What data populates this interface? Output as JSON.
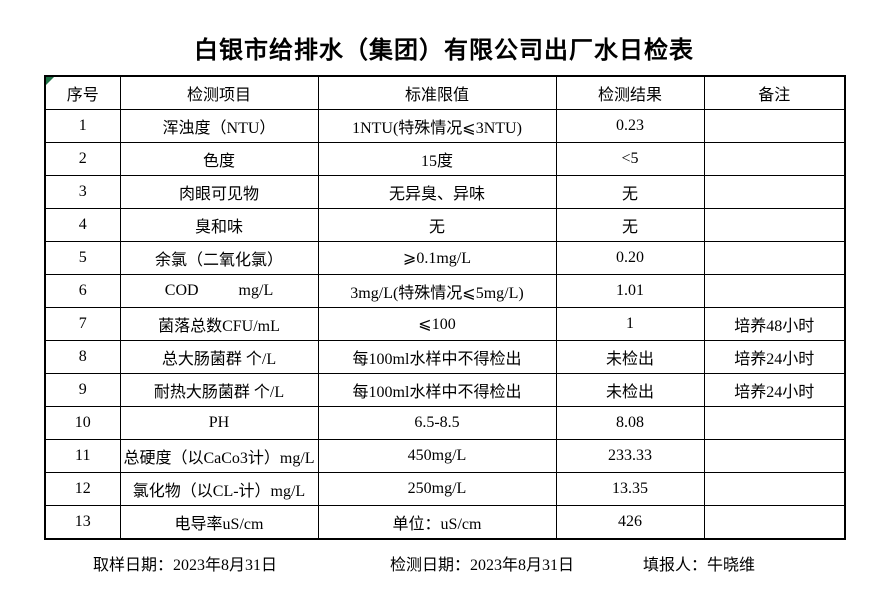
{
  "title": "白银市给排水（集团）有限公司出厂水日检表",
  "table": {
    "headers": [
      "序号",
      "检测项目",
      "标准限值",
      "检测结果",
      "备注"
    ],
    "rows": [
      [
        "1",
        "浑浊度（NTU）",
        "1NTU(特殊情况⩽3NTU)",
        "0.23",
        ""
      ],
      [
        "2",
        "色度",
        "15度",
        "<5",
        ""
      ],
      [
        "3",
        "肉眼可见物",
        "无异臭、异味",
        "无",
        ""
      ],
      [
        "4",
        "臭和味",
        "无",
        "无",
        ""
      ],
      [
        "5",
        "余氯（二氧化氯）",
        "⩾0.1mg/L",
        "0.20",
        ""
      ],
      [
        "6",
        "COD          mg/L",
        "3mg/L(特殊情况⩽5mg/L)",
        "1.01",
        ""
      ],
      [
        "7",
        "菌落总数CFU/mL",
        "⩽100",
        "1",
        "培养48小时"
      ],
      [
        "8",
        "总大肠菌群 个/L",
        "每100ml水样中不得检出",
        "未检出",
        "培养24小时"
      ],
      [
        "9",
        "耐热大肠菌群 个/L",
        "每100ml水样中不得检出",
        "未检出",
        "培养24小时"
      ],
      [
        "10",
        "PH",
        "6.5-8.5",
        "8.08",
        ""
      ],
      [
        "11",
        "总硬度（以CaCo3计）mg/L",
        "450mg/L",
        "233.33",
        ""
      ],
      [
        "12",
        "氯化物（以CL-计）mg/L",
        "250mg/L",
        "13.35",
        ""
      ],
      [
        "13",
        "电导率uS/cm",
        "单位：uS/cm",
        "426",
        ""
      ]
    ]
  },
  "footer": {
    "sampling_date": "取样日期：2023年8月31日",
    "testing_date": "检测日期：2023年8月31日",
    "reporter": "填报人：牛晓维"
  },
  "colors": {
    "corner_triangle_green": "#1e7145",
    "border_black": "#000000",
    "background_white": "#ffffff"
  }
}
